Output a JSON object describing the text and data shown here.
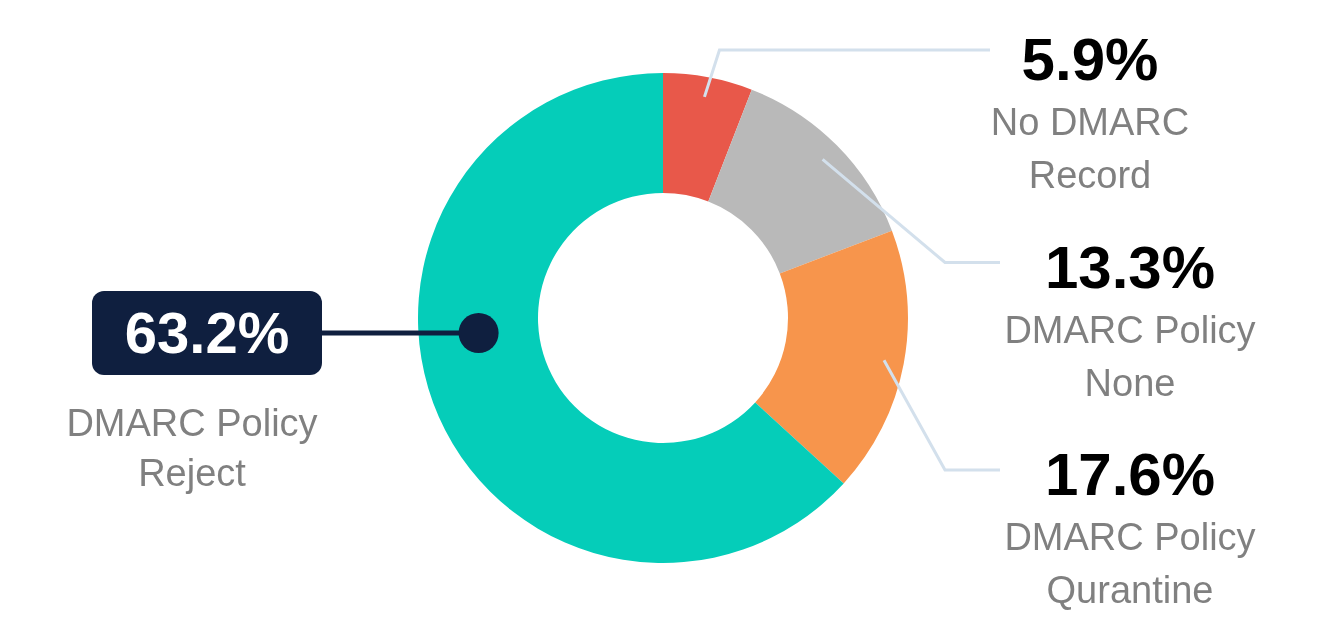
{
  "chart_data": {
    "type": "donut",
    "categories": [
      "No DMARC Record",
      "DMARC Policy None",
      "DMARC Policy Qurantine",
      "DMARC Policy Reject"
    ],
    "values": [
      5.9,
      13.3,
      17.6,
      63.2
    ],
    "colors": [
      "#e8584a",
      "#b9b9b9",
      "#f7954c",
      "#05cdb9"
    ],
    "value_labels": [
      "5.9%",
      "13.3%",
      "17.6%",
      "63.2%"
    ]
  }
}
